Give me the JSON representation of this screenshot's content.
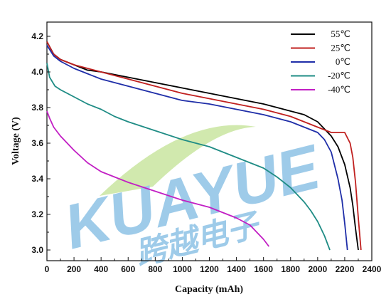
{
  "chart_data": {
    "type": "line",
    "xlabel": "Capacity (mAh)",
    "ylabel": "Voltage (V)",
    "xlim": [
      0,
      2400
    ],
    "ylim": [
      2.94,
      4.28
    ],
    "xticks": [
      "0",
      "200",
      "400",
      "600",
      "800",
      "1000",
      "1200",
      "1400",
      "1600",
      "1800",
      "2000",
      "2200",
      "2400"
    ],
    "yticks": [
      "3.0",
      "3.2",
      "3.4",
      "3.6",
      "3.8",
      "4.0",
      "4.2"
    ],
    "grid": false,
    "legend_position": "top-right",
    "series": [
      {
        "name": "55℃",
        "color": "#000000",
        "x": [
          0,
          50,
          100,
          200,
          300,
          400,
          600,
          800,
          1000,
          1200,
          1400,
          1600,
          1800,
          1900,
          2000,
          2100,
          2150,
          2200,
          2240,
          2260,
          2280,
          2300
        ],
        "y": [
          4.17,
          4.1,
          4.07,
          4.04,
          4.01,
          4.0,
          3.97,
          3.94,
          3.91,
          3.88,
          3.85,
          3.82,
          3.78,
          3.76,
          3.72,
          3.64,
          3.58,
          3.48,
          3.35,
          3.25,
          3.12,
          3.0
        ]
      },
      {
        "name": "25℃",
        "color": "#c0201f",
        "x": [
          0,
          50,
          100,
          200,
          300,
          400,
          600,
          800,
          1000,
          1200,
          1400,
          1600,
          1800,
          2000,
          2100,
          2200,
          2240,
          2260,
          2280,
          2300,
          2320
        ],
        "y": [
          4.17,
          4.1,
          4.07,
          4.04,
          4.02,
          4.0,
          3.96,
          3.92,
          3.88,
          3.85,
          3.82,
          3.79,
          3.75,
          3.69,
          3.66,
          3.66,
          3.6,
          3.52,
          3.38,
          3.18,
          3.0
        ]
      },
      {
        "name": "0℃",
        "color": "#1f2ea8",
        "x": [
          0,
          50,
          100,
          200,
          300,
          400,
          600,
          800,
          1000,
          1200,
          1400,
          1600,
          1800,
          2000,
          2050,
          2100,
          2150,
          2180,
          2200,
          2220
        ],
        "y": [
          4.15,
          4.09,
          4.06,
          4.02,
          3.99,
          3.96,
          3.92,
          3.88,
          3.84,
          3.82,
          3.79,
          3.76,
          3.72,
          3.66,
          3.62,
          3.55,
          3.4,
          3.28,
          3.15,
          3.0
        ]
      },
      {
        "name": "-20℃",
        "color": "#1f8c85",
        "x": [
          0,
          20,
          60,
          100,
          200,
          300,
          400,
          500,
          600,
          800,
          1000,
          1200,
          1400,
          1600,
          1700,
          1800,
          1900,
          1950,
          2000,
          2050,
          2090
        ],
        "y": [
          4.05,
          3.97,
          3.92,
          3.9,
          3.86,
          3.82,
          3.79,
          3.75,
          3.72,
          3.67,
          3.62,
          3.58,
          3.52,
          3.46,
          3.41,
          3.35,
          3.27,
          3.22,
          3.16,
          3.08,
          3.0
        ]
      },
      {
        "name": "-40℃",
        "color": "#c21fc4",
        "x": [
          0,
          20,
          50,
          100,
          200,
          300,
          400,
          500,
          600,
          800,
          1000,
          1200,
          1400,
          1500,
          1600,
          1640
        ],
        "y": [
          3.78,
          3.74,
          3.69,
          3.64,
          3.56,
          3.49,
          3.44,
          3.41,
          3.38,
          3.33,
          3.28,
          3.24,
          3.18,
          3.14,
          3.06,
          3.02
        ]
      }
    ]
  },
  "watermark": {
    "latin": "KUAYUE",
    "chinese": "跨越电子",
    "color": "#8ec3e6",
    "swoosh_color": "#c9e6a0"
  }
}
